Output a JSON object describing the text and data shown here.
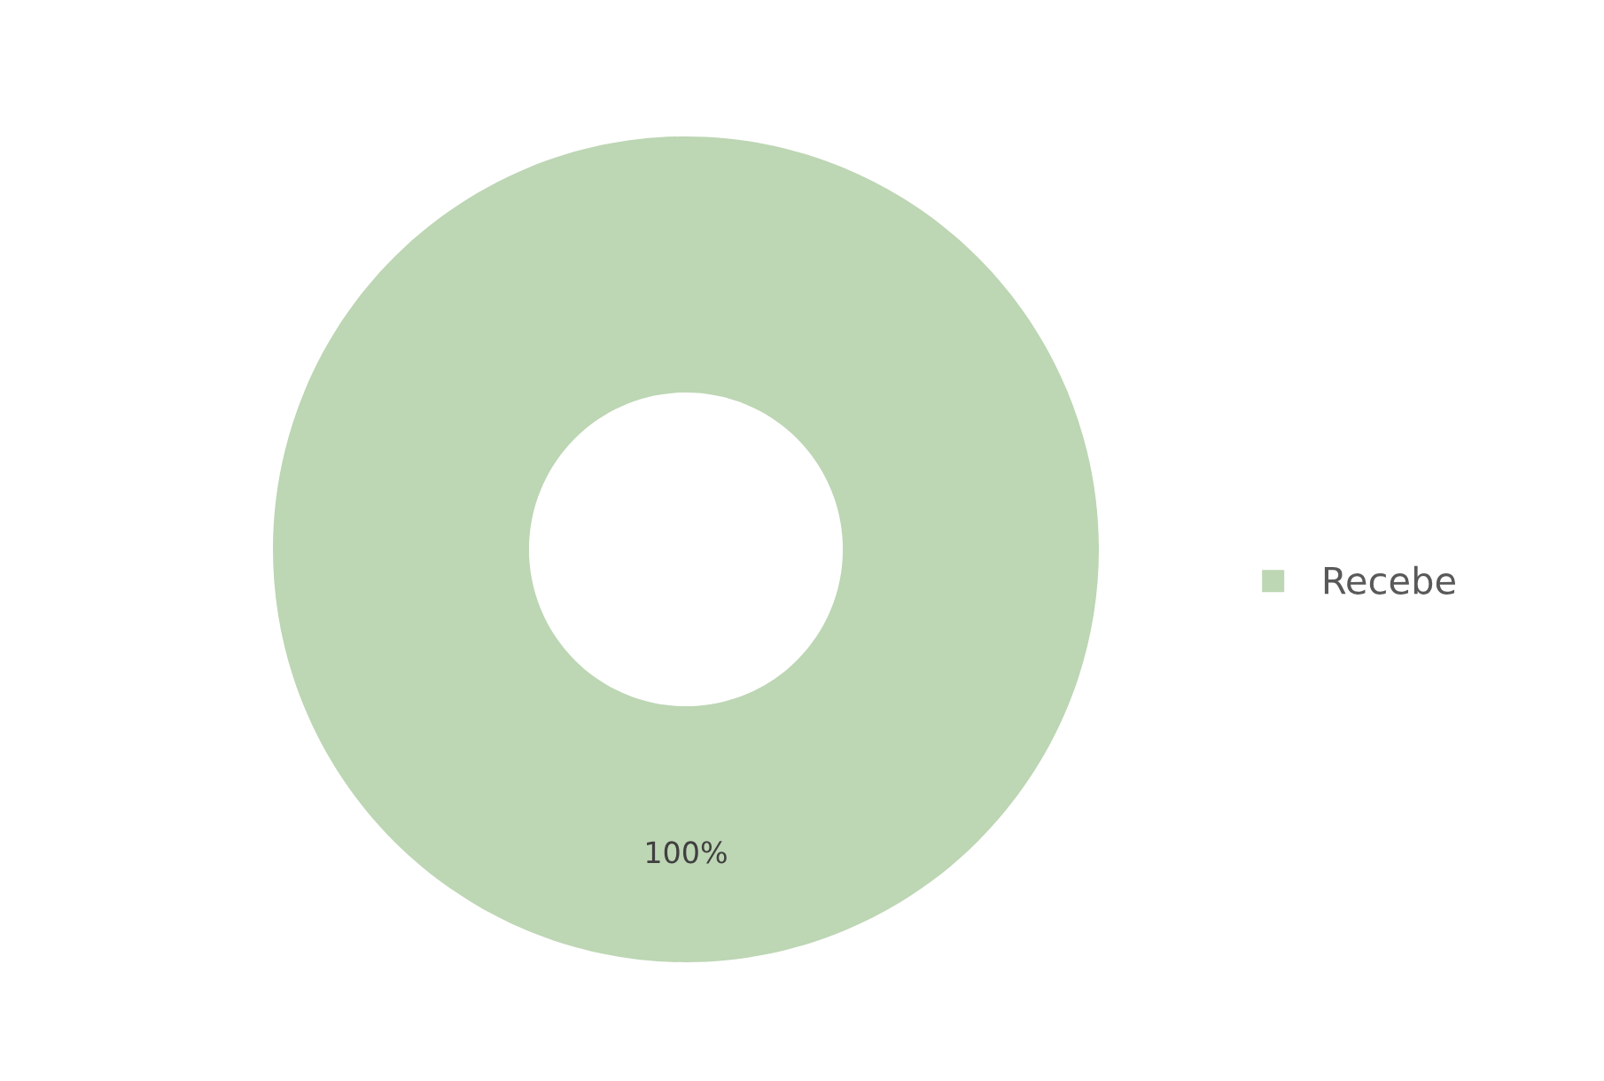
{
  "chart_data": {
    "type": "donut",
    "categories": [
      "Recebe"
    ],
    "values": [
      100
    ],
    "colors": [
      "#bdd6b4"
    ],
    "value_labels": [
      "100%"
    ],
    "legend": "right"
  }
}
